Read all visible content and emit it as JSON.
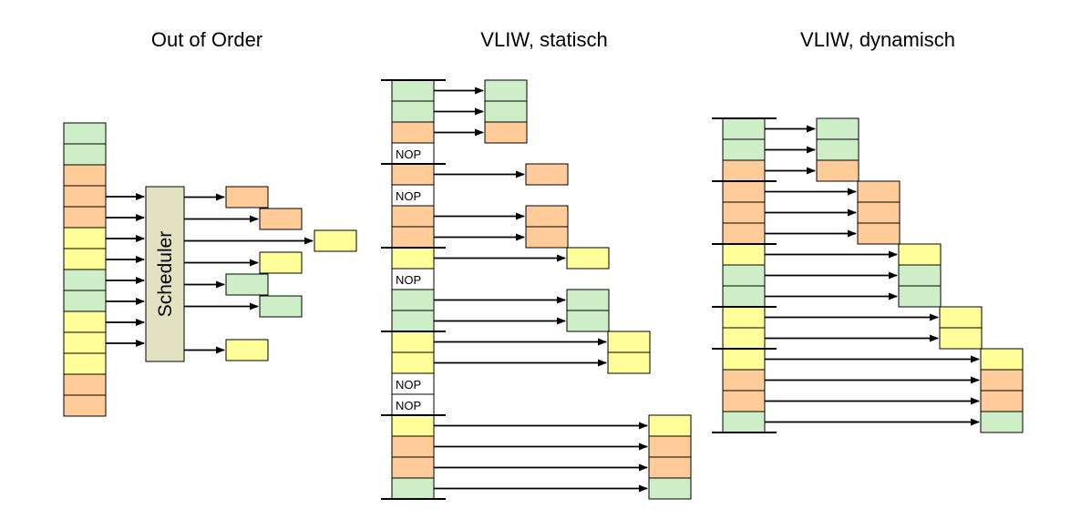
{
  "colors": {
    "green": "#cdeec6",
    "orange": "#ffcc99",
    "yellow": "#ffff99",
    "nop": "#ffffff",
    "scheduler": "#e2e2c2",
    "border": "#000000",
    "arrow": "#000000",
    "background": "#ffffff"
  },
  "labels": {
    "nop": "NOP",
    "scheduler": "Scheduler"
  },
  "panels": [
    {
      "id": "out-of-order",
      "title": "Out of Order",
      "type": "scheduler",
      "queue": [
        "green",
        "green",
        "orange",
        "orange",
        "orange",
        "yellow",
        "yellow",
        "green",
        "green",
        "yellow",
        "yellow",
        "yellow",
        "orange",
        "orange"
      ],
      "scheduler_label": "Scheduler",
      "input_arrows": 8,
      "outputs": [
        {
          "color": "orange",
          "step": 1,
          "row": 0
        },
        {
          "color": "orange",
          "step": 2,
          "row": 1
        },
        {
          "color": "yellow",
          "step": 3,
          "row": 2
        },
        {
          "color": "yellow",
          "step": 2,
          "row": 3
        },
        {
          "color": "green",
          "step": 1,
          "row": 4
        },
        {
          "color": "green",
          "step": 2,
          "row": 5
        },
        {
          "color": "yellow",
          "step": 1,
          "row": 7
        }
      ]
    },
    {
      "id": "vliw-static",
      "title": "VLIW, statisch",
      "type": "vliw",
      "slots": [
        "green",
        "green",
        "orange",
        "NOP",
        "orange",
        "NOP",
        "orange",
        "orange",
        "yellow",
        "NOP",
        "green",
        "green",
        "yellow",
        "yellow",
        "NOP",
        "NOP",
        "yellow",
        "orange",
        "orange",
        "green"
      ],
      "groups": [
        4,
        4,
        4,
        4,
        4
      ]
    },
    {
      "id": "vliw-dynamic",
      "title": "VLIW, dynamisch",
      "type": "vliw",
      "slots": [
        "green",
        "green",
        "orange",
        "orange",
        "orange",
        "orange",
        "yellow",
        "green",
        "green",
        "yellow",
        "yellow",
        "yellow",
        "orange",
        "orange",
        "green"
      ],
      "groups": [
        3,
        3,
        3,
        2,
        4
      ]
    }
  ]
}
